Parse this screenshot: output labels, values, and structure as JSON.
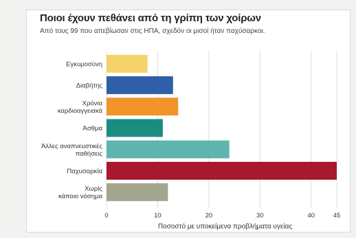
{
  "chart_data": {
    "type": "bar",
    "orientation": "horizontal",
    "title": "Ποιοι έχουν πεθάνει από τη γρίπη των χοίρων",
    "subtitle": "Από τους 99 που απεβίωσαν στις ΗΠΑ, σχεδόν οι μισοί ήταν παχύσαρκοι.",
    "xlabel": "Ποσοστό με υποκείμενα προβλήματα υγείας",
    "ylabel": "",
    "xlim": [
      0,
      45
    ],
    "xticks": [
      0,
      10,
      20,
      30,
      40,
      45
    ],
    "grid": true,
    "categories": [
      [
        "Εγκυμοσύνη"
      ],
      [
        "Διαβήτης"
      ],
      [
        "Χρόνια",
        "καρδιοαγγειακά"
      ],
      [
        "Άσθμα"
      ],
      [
        "Άλλες αναπνευστικές",
        "παθήσεις"
      ],
      [
        "Παχυσαρκία"
      ],
      [
        "Χωρίς",
        "κάποιο νόσημα"
      ]
    ],
    "values": [
      8,
      13,
      14,
      11,
      24,
      45,
      12
    ],
    "colors": [
      "#f6d36a",
      "#2e5fa8",
      "#f2942a",
      "#1a8c80",
      "#5eb6ae",
      "#a8182e",
      "#a3a58c"
    ]
  }
}
